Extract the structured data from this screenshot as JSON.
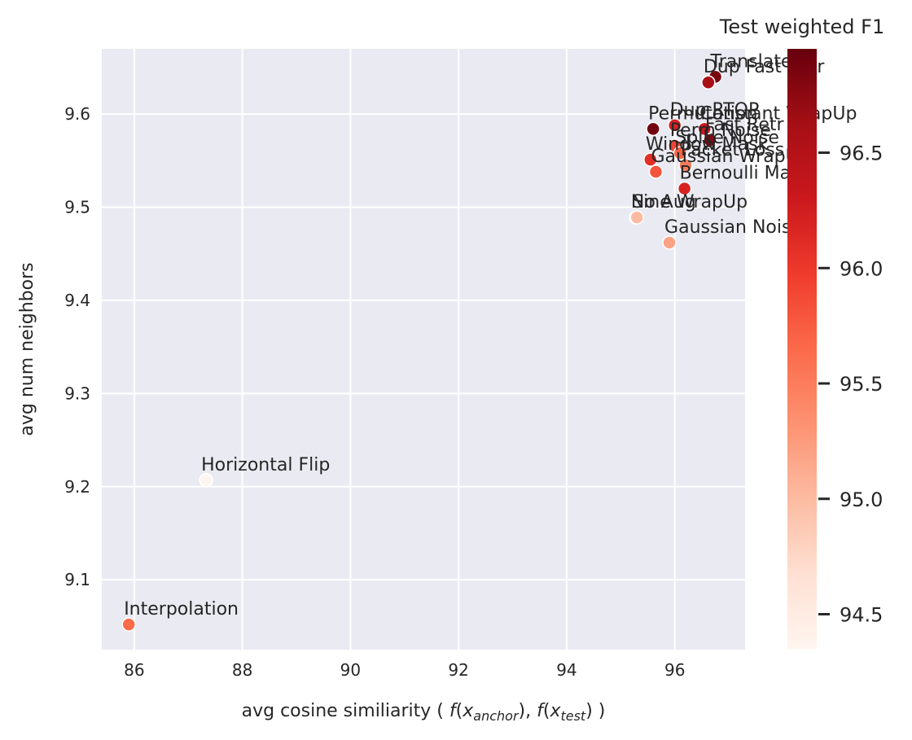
{
  "chart_data": {
    "type": "scatter",
    "title": "",
    "xlabel": "avg cosine similiarity ( f(x_anchor), f(x_test) )",
    "ylabel": "avg num neighbors",
    "xlim": [
      85.4,
      97.3
    ],
    "ylim": [
      9.025,
      9.67
    ],
    "xticks": [
      "86",
      "88",
      "90",
      "92",
      "94",
      "96"
    ],
    "yticks": [
      "9.1",
      "9.2",
      "9.3",
      "9.4",
      "9.5",
      "9.6"
    ],
    "grid": true,
    "colorbar": {
      "title": "Test weighted F1",
      "range": [
        94.35,
        96.95
      ],
      "ticks": [
        "94.5",
        "95.0",
        "95.5",
        "96.0",
        "96.5"
      ],
      "colormap": "Reds"
    },
    "points": [
      {
        "label": "Translate",
        "x": 96.75,
        "y": 9.64,
        "f1": 96.85
      },
      {
        "label": "Dup Fast Retr",
        "x": 96.62,
        "y": 9.634,
        "f1": 96.6
      },
      {
        "label": "Dup RTOP",
        "x": 96.0,
        "y": 9.588,
        "f1": 96.2
      },
      {
        "label": "Permutation",
        "x": 95.6,
        "y": 9.584,
        "f1": 96.9
      },
      {
        "label": "Constant WrapUp",
        "x": 96.55,
        "y": 9.584,
        "f1": 96.3
      },
      {
        "label": "Fast Retr",
        "x": 96.65,
        "y": 9.572,
        "f1": 96.8
      },
      {
        "label": "Perm Noise",
        "x": 96.0,
        "y": 9.566,
        "f1": 95.9
      },
      {
        "label": "Spike Noise",
        "x": 96.1,
        "y": 9.558,
        "f1": 95.7
      },
      {
        "label": "Window Mask",
        "x": 95.55,
        "y": 9.551,
        "f1": 96.1
      },
      {
        "label": "Packet Loss",
        "x": 96.2,
        "y": 9.545,
        "f1": 95.5
      },
      {
        "label": "Gaussian WrapUp",
        "x": 95.65,
        "y": 9.538,
        "f1": 95.8
      },
      {
        "label": "Bernoulli Mask",
        "x": 96.18,
        "y": 9.52,
        "f1": 96.2
      },
      {
        "label": "No Aug",
        "x": 95.28,
        "y": 9.489,
        "f1": 95.1
      },
      {
        "label": "Sine WrapUp",
        "x": 95.3,
        "y": 9.489,
        "f1": 95.0
      },
      {
        "label": "Gaussian Noise",
        "x": 95.9,
        "y": 9.462,
        "f1": 95.2
      },
      {
        "label": "Horizontal Flip",
        "x": 87.33,
        "y": 9.207,
        "f1": 94.35
      },
      {
        "label": "Interpolation",
        "x": 85.9,
        "y": 9.052,
        "f1": 95.65
      }
    ]
  }
}
